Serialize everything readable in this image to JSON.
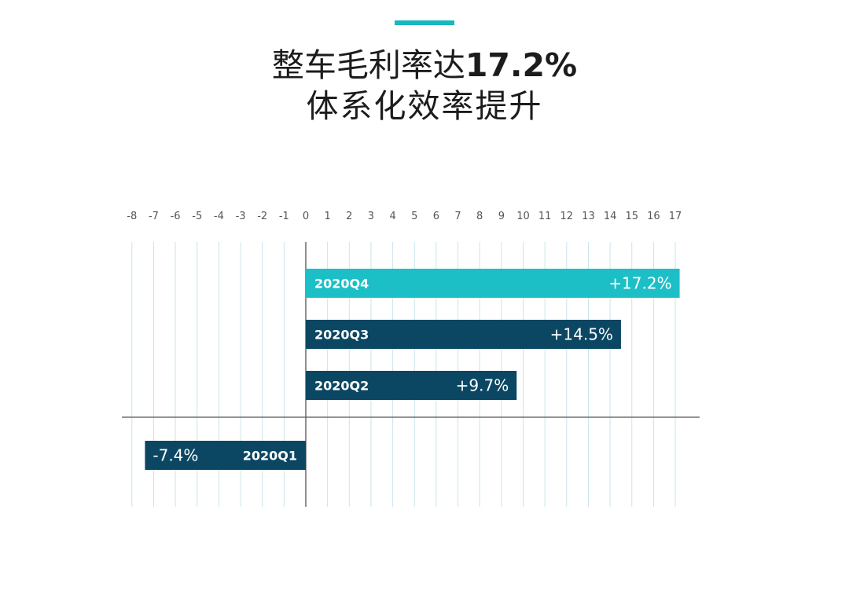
{
  "title": {
    "line1_prefix": "整车毛利率达",
    "line1_value": "17.2%",
    "line2": "体系化效率提升"
  },
  "colors": {
    "accent": "#17b8c0",
    "highlight_bar": "#1dbfc7",
    "bar": "#0b4763",
    "grid": "#c9e5ea",
    "tick_text": "#555555",
    "axis": "#555555"
  },
  "chart_data": {
    "type": "bar",
    "orientation": "horizontal",
    "categories": [
      "2020Q4",
      "2020Q3",
      "2020Q2",
      "2020Q1"
    ],
    "values": [
      17.2,
      14.5,
      9.7,
      -7.4
    ],
    "labels": [
      "+17.2%",
      "+14.5%",
      "+9.7%",
      "-7.4%"
    ],
    "xlim": [
      -8,
      17
    ],
    "ticks": [
      "-8",
      "-7",
      "-6",
      "-5",
      "-4",
      "-3",
      "-2",
      "-1",
      "0",
      "1",
      "2",
      "3",
      "4",
      "5",
      "6",
      "7",
      "8",
      "9",
      "10",
      "11",
      "12",
      "13",
      "14",
      "15",
      "16",
      "17"
    ],
    "grid": true,
    "title": "",
    "xlabel": "",
    "ylabel": ""
  }
}
